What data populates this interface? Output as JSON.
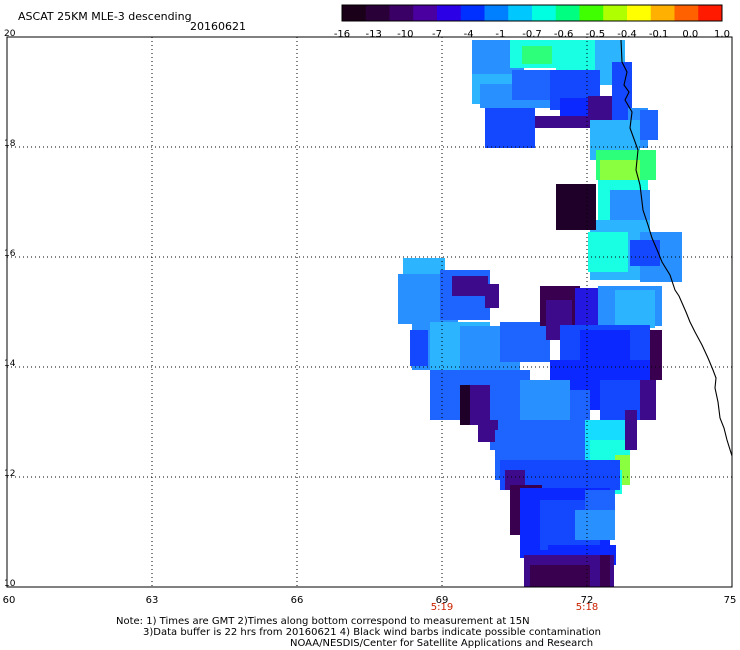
{
  "title": "ASCAT 25KM MLE-3 descending",
  "date": "20160621",
  "colorbar": {
    "labels": [
      "-16",
      "-13",
      "-10",
      "-7",
      "-4",
      "-1",
      "-0.7",
      "-0.6",
      "-0.5",
      "-0.4",
      "-0.1",
      "0.0",
      "1.0"
    ],
    "colors": [
      "#1a0018",
      "#2a0038",
      "#3b0066",
      "#4a00a0",
      "#2c00e6",
      "#0030ff",
      "#0080ff",
      "#00c8ff",
      "#00ffe0",
      "#00ff80",
      "#40ff00",
      "#b0ff00",
      "#ffff00",
      "#ffb000",
      "#ff6000",
      "#ff1a00"
    ]
  },
  "axes": {
    "lat_labels": [
      "20",
      "18",
      "16",
      "14",
      "12",
      "10"
    ],
    "lon_labels": [
      "60",
      "63",
      "66",
      "69",
      "72",
      "75"
    ],
    "time_labels": [
      {
        "lon": "69",
        "text": "5:19"
      },
      {
        "lon": "72",
        "text": "5:18"
      }
    ]
  },
  "notes": {
    "line1": "Note: 1) Times are GMT 2)Times along bottom correspond to measurement at 15N",
    "line2": "3)Data buffer is 22 hrs from 20160621 4) Black wind barbs indicate possible contamination",
    "line3": "NOAA/NESDIS/Center for Satellite Applications and Research"
  }
}
